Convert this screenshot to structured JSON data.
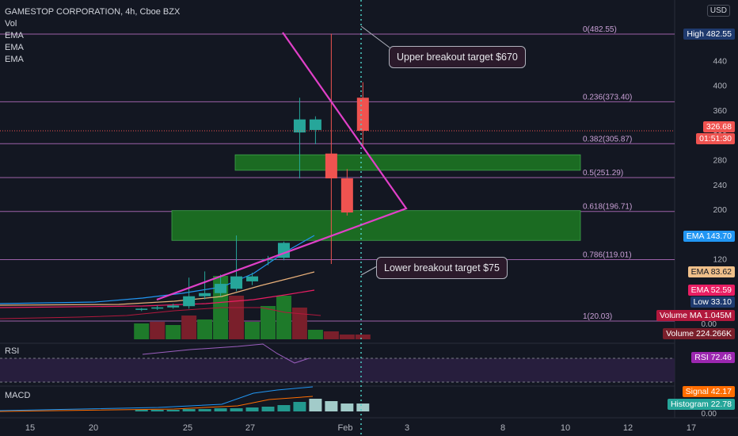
{
  "symbol_title": "GAMESTOP CORPORATION, 4h, Cboe BZX",
  "indicators": [
    "Vol",
    "EMA",
    "EMA",
    "EMA"
  ],
  "currency": "USD",
  "chart_data": {
    "type": "candlestick",
    "title": "GAMESTOP CORPORATION, 4h, Cboe BZX",
    "y_ticks": [
      52,
      480,
      440,
      400,
      360,
      320,
      280,
      240,
      200,
      160,
      120
    ],
    "ylim": [
      -20,
      520
    ],
    "x_ticks": [
      "15",
      "20",
      "25",
      "27",
      "Feb",
      "3",
      "8",
      "10",
      "12",
      "17"
    ],
    "candles": [
      {
        "x": 9.0,
        "open": 38,
        "high": 41,
        "low": 36,
        "close": 40
      },
      {
        "x": 10.0,
        "open": 40,
        "high": 45,
        "low": 38,
        "close": 42
      },
      {
        "x": 11.0,
        "open": 42,
        "high": 48,
        "low": 40,
        "close": 45
      },
      {
        "x": 12.0,
        "open": 44,
        "high": 90,
        "low": 40,
        "close": 60
      },
      {
        "x": 13.0,
        "open": 60,
        "high": 100,
        "low": 55,
        "close": 65
      },
      {
        "x": 14.0,
        "open": 65,
        "high": 95,
        "low": 60,
        "close": 80
      },
      {
        "x": 15.0,
        "open": 72,
        "high": 158,
        "low": 68,
        "close": 92
      },
      {
        "x": 16.0,
        "open": 84,
        "high": 98,
        "low": 78,
        "close": 92
      },
      {
        "x": 17.0,
        "open": 118,
        "high": 125,
        "low": 110,
        "close": 120
      },
      {
        "x": 18.0,
        "open": 122,
        "high": 148,
        "low": 118,
        "close": 146
      },
      {
        "x": 19.0,
        "open": 324,
        "high": 380,
        "low": 250,
        "close": 345
      },
      {
        "x": 20.0,
        "open": 328,
        "high": 350,
        "low": 305,
        "close": 345
      },
      {
        "x": 21.0,
        "open": 290,
        "high": 483,
        "low": 112,
        "close": 250
      },
      {
        "x": 22.0,
        "open": 250,
        "high": 265,
        "low": 190,
        "close": 195
      },
      {
        "x": 23.0,
        "open": 380,
        "high": 405,
        "low": 300,
        "close": 326.68
      }
    ],
    "volume": [
      {
        "x": 9,
        "v": 0.2,
        "up": true
      },
      {
        "x": 10,
        "v": 0.22,
        "up": false
      },
      {
        "x": 11,
        "v": 0.18,
        "up": true
      },
      {
        "x": 12,
        "v": 0.3,
        "up": false
      },
      {
        "x": 13,
        "v": 0.25,
        "up": true
      },
      {
        "x": 14,
        "v": 0.8,
        "up": true
      },
      {
        "x": 15,
        "v": 0.55,
        "up": false
      },
      {
        "x": 16,
        "v": 0.22,
        "up": true
      },
      {
        "x": 17,
        "v": 0.42,
        "up": true
      },
      {
        "x": 18,
        "v": 0.55,
        "up": true
      },
      {
        "x": 19,
        "v": 0.4,
        "up": false
      },
      {
        "x": 20,
        "v": 0.12,
        "up": true
      },
      {
        "x": 21,
        "v": 0.1,
        "up": false
      },
      {
        "x": 22,
        "v": 0.06,
        "up": false
      },
      {
        "x": 23,
        "v": 0.06,
        "up": false
      }
    ],
    "ema_series": [
      {
        "name": "EMA",
        "value": 143.7,
        "color": "#2196f3"
      },
      {
        "name": "EMA",
        "value": 83.62,
        "color": "#e9b07a"
      },
      {
        "name": "EMA",
        "value": 52.59,
        "color": "#e91e63"
      }
    ],
    "fibonacci": [
      {
        "label": "0(482.55)",
        "level": 482.55
      },
      {
        "label": "0.236(373.40)",
        "level": 373.4
      },
      {
        "label": "0.382(305.87)",
        "level": 305.87
      },
      {
        "label": "0.5(251.29)",
        "level": 251.29
      },
      {
        "label": "0.618(196.71)",
        "level": 196.71
      },
      {
        "label": "0.786(119.01)",
        "level": 119.01
      },
      {
        "label": "1(20.03)",
        "level": 20.03
      }
    ],
    "zones": [
      {
        "from": 263,
        "to": 288
      },
      {
        "from": 150,
        "to": 198
      }
    ],
    "annotations": [
      "Upper breakout target $670",
      "Lower breakout target $75"
    ]
  },
  "price_tags": {
    "axis_52": "52",
    "high": "High  482.55",
    "last_price": "326.68",
    "countdown": "01:51:30",
    "ema1": "EMA  143.70",
    "ema2": "EMA  83.62",
    "ema3": "EMA  52.59",
    "low": "Low  33.10",
    "volume_ma": "Volume MA  1.045M",
    "volume": "Volume  224.266K",
    "rsi": "RSI  72.46",
    "signal": "Signal  42.17",
    "histogram": "Histogram  22.78"
  },
  "rsi": {
    "label": "RSI",
    "value": 72.46,
    "axis_values": [
      "72.46"
    ]
  },
  "macd": {
    "label": "MACD",
    "axis_zero": "0.00"
  },
  "volume_axis_zero": "0.00",
  "colors": {
    "up": "#26a69a",
    "down": "#ef5350",
    "fib_line": "#b46fc0",
    "zone": "#1b6b22",
    "triangle": "#e040c8",
    "dotted_line": "#4dd0c6"
  }
}
